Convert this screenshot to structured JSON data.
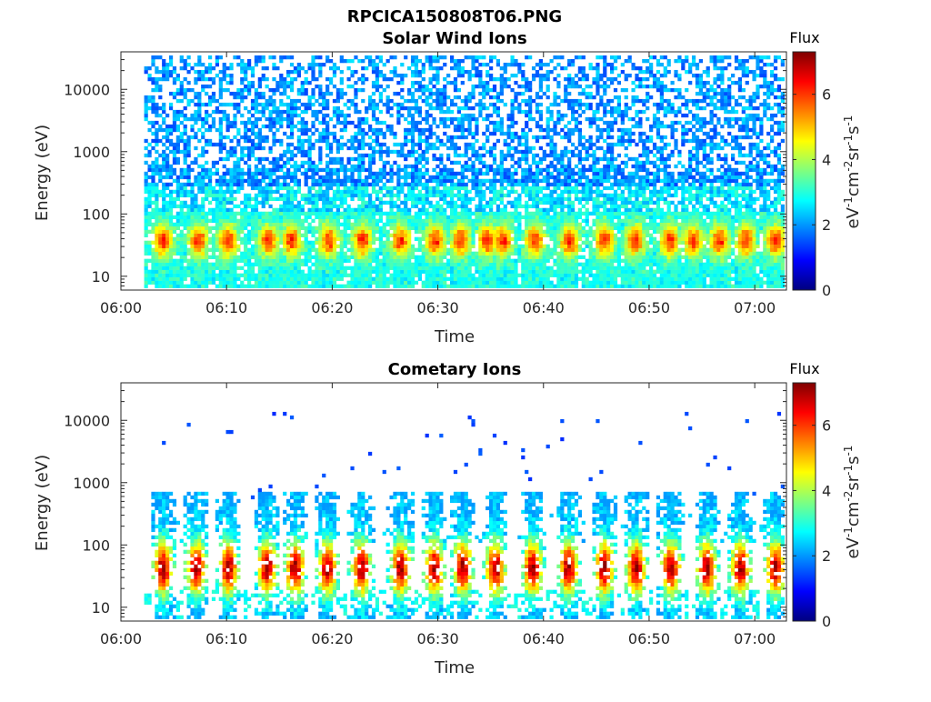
{
  "figure": {
    "main_title": "RPCICA150808T06.PNG"
  },
  "colormap": {
    "name": "jet",
    "stops": [
      "#00007f",
      "#0000ff",
      "#007fff",
      "#00ffff",
      "#7fff7f",
      "#ffff00",
      "#ff7f00",
      "#ff0000",
      "#7f0000"
    ]
  },
  "chart_data": [
    {
      "type": "heatmap",
      "title": "Solar Wind Ions",
      "xlabel": "Time",
      "ylabel": "Energy (eV)",
      "x_ticks": [
        "06:00",
        "06:10",
        "06:20",
        "06:30",
        "06:40",
        "06:50",
        "07:00"
      ],
      "x_range_minutes": [
        0,
        63
      ],
      "data_x_range_minutes": [
        2.2,
        62.8
      ],
      "y_scale": "log",
      "y_range": [
        6,
        40000
      ],
      "y_ticks": [
        10,
        100,
        1000,
        10000
      ],
      "y_tick_labels": [
        "10",
        "100",
        "1000",
        "10000"
      ],
      "colorbar": {
        "label": "Flux",
        "unit_prefix": "eV",
        "unit_exp1": "-1",
        "unit_cm": "cm",
        "unit_exp2": "-2",
        "unit_sr": "sr",
        "unit_exp3": "-1",
        "unit_s": "s",
        "unit_exp4": "-1",
        "range": [
          0,
          7.3
        ],
        "ticks": [
          0,
          2,
          4,
          6
        ],
        "tick_labels": [
          "0",
          "2",
          "4",
          "6"
        ]
      },
      "description_series": {
        "pulse_times_minutes": [
          3.8,
          7.2,
          10.0,
          13.8,
          16.0,
          19.5,
          22.7,
          26.3,
          29.6,
          32.0,
          34.5,
          36.0,
          39.0,
          42.3,
          45.6,
          48.5,
          51.8,
          54.0,
          56.5,
          59.0,
          61.8
        ],
        "background_energy_range_eV": [
          10,
          30000
        ],
        "peak_energy_eV": 35,
        "peak_flux": 5.8
      }
    },
    {
      "type": "heatmap",
      "title": "Cometary Ions",
      "xlabel": "Time",
      "ylabel": "Energy (eV)",
      "x_ticks": [
        "06:00",
        "06:10",
        "06:20",
        "06:30",
        "06:40",
        "06:50",
        "07:00"
      ],
      "x_range_minutes": [
        0,
        63
      ],
      "data_x_range_minutes": [
        2.2,
        62.8
      ],
      "y_scale": "log",
      "y_range": [
        6,
        40000
      ],
      "y_ticks": [
        10,
        100,
        1000,
        10000
      ],
      "y_tick_labels": [
        "10",
        "100",
        "1000",
        "10000"
      ],
      "colorbar": {
        "label": "Flux",
        "unit_prefix": "eV",
        "unit_exp1": "-1",
        "unit_cm": "cm",
        "unit_exp2": "-2",
        "unit_sr": "sr",
        "unit_exp3": "-1",
        "unit_s": "s",
        "unit_exp4": "-1",
        "range": [
          0,
          7.3
        ],
        "ticks": [
          0,
          2,
          4,
          6
        ],
        "tick_labels": [
          "0",
          "2",
          "4",
          "6"
        ]
      },
      "description_series": {
        "pulse_times_minutes": [
          3.8,
          7.0,
          10.0,
          13.7,
          16.3,
          19.4,
          22.6,
          26.3,
          29.5,
          32.2,
          35.3,
          38.8,
          42.2,
          45.6,
          48.6,
          51.9,
          55.3,
          58.5,
          61.8
        ],
        "peak_energy_eV": 40,
        "peak_flux": 7.0,
        "sparse_high_energy_range_eV": [
          300,
          12000
        ]
      }
    }
  ]
}
